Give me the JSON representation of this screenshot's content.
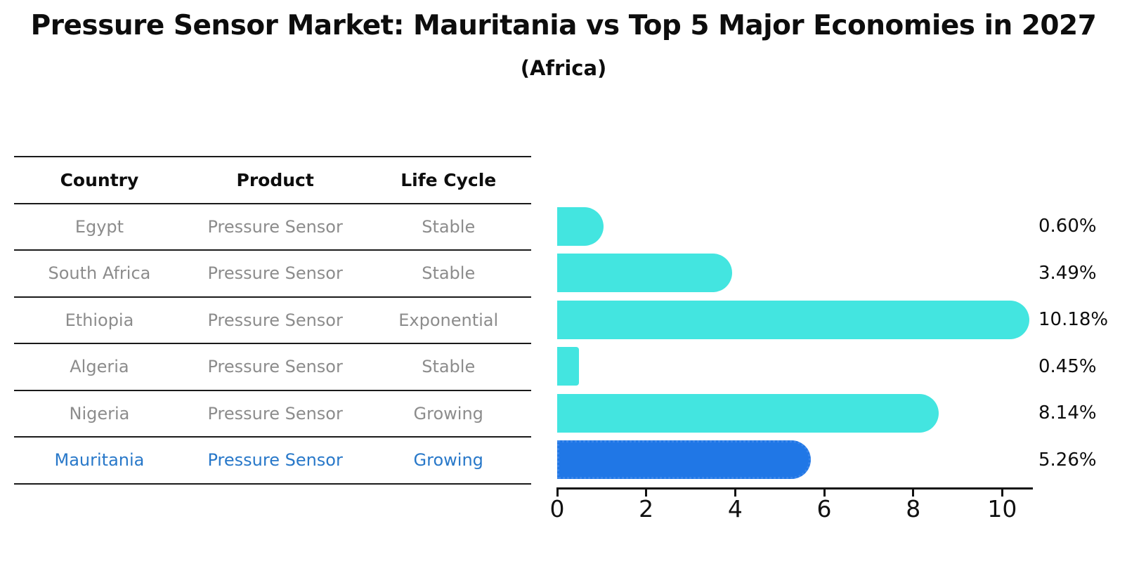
{
  "header": {
    "title": "Pressure Sensor Market: Mauritania vs Top 5 Major Economies in 2027",
    "subtitle": "(Africa)"
  },
  "table": {
    "columns": [
      "Country",
      "Product",
      "Life Cycle"
    ],
    "rows": [
      {
        "country": "Egypt",
        "product": "Pressure Sensor",
        "life_cycle": "Stable",
        "highlight": false
      },
      {
        "country": "South Africa",
        "product": "Pressure Sensor",
        "life_cycle": "Stable",
        "highlight": false
      },
      {
        "country": "Ethiopia",
        "product": "Pressure Sensor",
        "life_cycle": "Exponential",
        "highlight": false
      },
      {
        "country": "Algeria",
        "product": "Pressure Sensor",
        "life_cycle": "Stable",
        "highlight": false
      },
      {
        "country": "Nigeria",
        "product": "Pressure Sensor",
        "life_cycle": "Growing",
        "highlight": false
      },
      {
        "country": "Mauritania",
        "product": "Pressure Sensor",
        "life_cycle": "Growing",
        "highlight": true
      }
    ]
  },
  "chart_data": {
    "type": "bar",
    "orientation": "horizontal",
    "title": "Pressure Sensor Market: Mauritania vs Top 5 Major Economies in 2027 (Africa)",
    "categories": [
      "Egypt",
      "South Africa",
      "Ethiopia",
      "Algeria",
      "Nigeria",
      "Mauritania"
    ],
    "values": [
      0.6,
      3.49,
      10.18,
      0.45,
      8.14,
      5.26
    ],
    "labels": [
      "0.60%",
      "3.49%",
      "10.18%",
      "0.45%",
      "8.14%",
      "5.26%"
    ],
    "x_ticks": [
      0,
      2,
      4,
      6,
      8,
      10
    ],
    "xlim": [
      0,
      10.7
    ],
    "grid": false,
    "legend": false,
    "highlight_index": 5
  },
  "colors": {
    "bar_color": "#43E5E0",
    "highlight_bar_color": "#2077E6",
    "highlight_text_color": "#2878C9",
    "table_text_color": "#8C8C8C",
    "axis_color": "#111111"
  }
}
